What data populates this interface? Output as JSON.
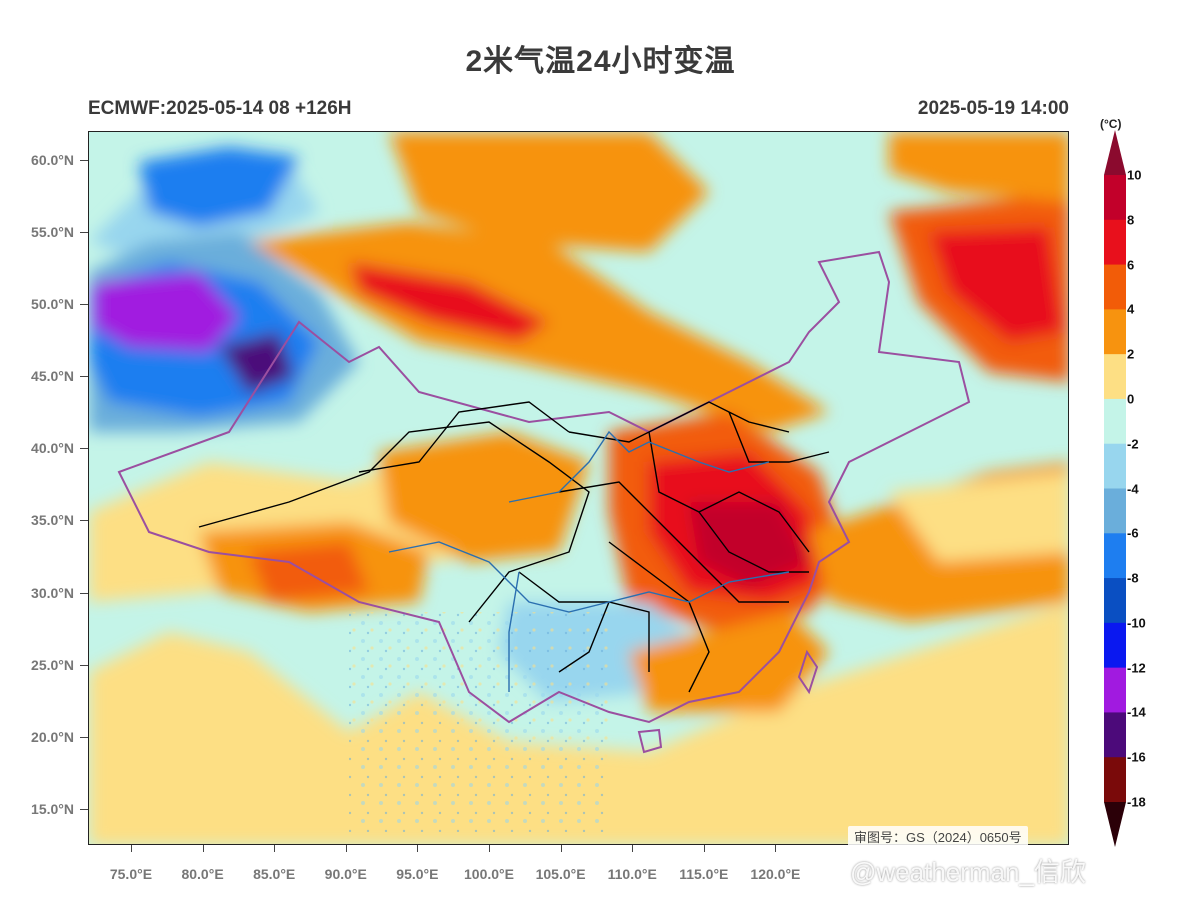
{
  "title": "2米气温24小时变温",
  "model_run": "ECMWF:2025-05-14 08 +126H",
  "valid_time": "2025-05-19 14:00",
  "approval_number": "审图号：GS（2024）0650号",
  "watermark": "@weatherman_信欣",
  "map": {
    "lon_range": [
      72,
      140.5
    ],
    "lat_range": [
      12.5,
      62
    ],
    "lat_ticks": [
      "60.0°N",
      "55.0°N",
      "50.0°N",
      "45.0°N",
      "40.0°N",
      "35.0°N",
      "30.0°N",
      "25.0°N",
      "20.0°N",
      "15.0°N"
    ],
    "lon_ticks": [
      "75.0°E",
      "80.0°E",
      "85.0°E",
      "90.0°E",
      "95.0°E",
      "100.0°E",
      "105.0°E",
      "110.0°E",
      "115.0°E",
      "120.0°E"
    ],
    "boundary_color": "#9b4fa0",
    "province_color": "#000000",
    "river_color": "#2a6fb0"
  },
  "colorbar": {
    "unit": "(°C)",
    "labels": [
      "10",
      "8",
      "6",
      "4",
      "2",
      "0",
      "-2",
      "-4",
      "-6",
      "-8",
      "-10",
      "-12",
      "-14",
      "-16",
      "-18"
    ],
    "colors": [
      "#8b0a2e",
      "#c2002a",
      "#e8101c",
      "#f25c08",
      "#f7930f",
      "#fddf84",
      "#c4f4e8",
      "#98d6ee",
      "#6aaedb",
      "#1e7ef0",
      "#0a4fc2",
      "#0a18f0",
      "#a11ae0",
      "#4c0a7a",
      "#7a0a0a",
      "#2b0008"
    ]
  }
}
